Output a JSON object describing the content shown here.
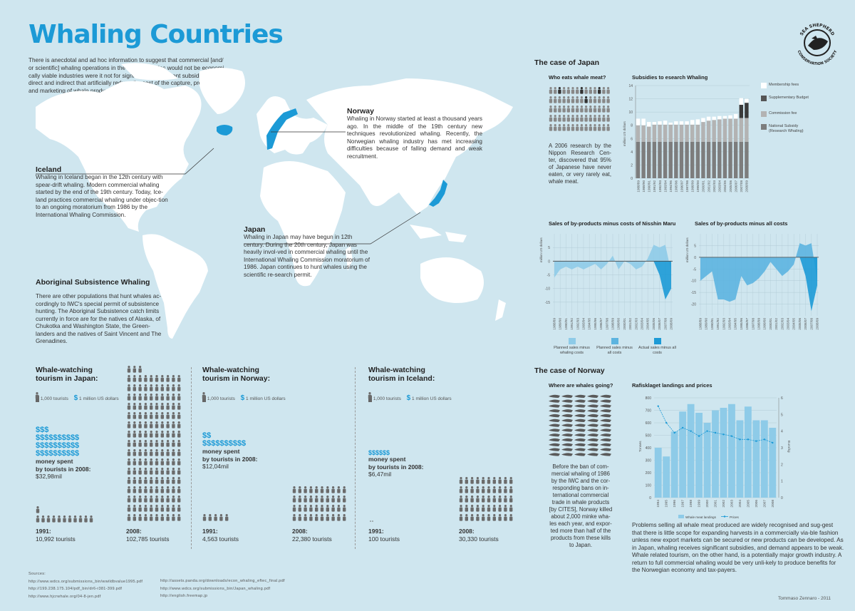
{
  "title": "Whaling Countries",
  "intro": "There is anecdotal and ad hoc information to suggest that commercial [and/ or scientific] whaling operations in the three countries would not be economi-cally viable industries were it not for significant government subsidies, both direct and indirect that artificially reduce the cost of the capture, processing and marketing of whale products.",
  "logo": {
    "top_text": "SEA SHEPHERD",
    "bottom_text": "CONSERVATION SOCIETY"
  },
  "norway": {
    "heading": "Norway",
    "text": "Whaling in Norway started at least a thousand years ago. In the middle of the 19th century new techniques revolutionized whaling. Recently, the Norwegian whaling industry has met increasing difficulties because of falling demand and weak recruitment."
  },
  "iceland": {
    "heading": "Iceland",
    "text": "Whaling in Iceland began in the 12th century with spear-drift whaling. Modern commercial whaling started by the end of the 19th century. Today, Ice-land practices commercial whaling under objec-tion to an ongoing moratorium from 1986 by the International Whaling Commission."
  },
  "japan": {
    "heading": "Japan",
    "text": "Whaling in Japan may have begun in 12th century. During the 20th century, Japan was heavily invol-ved in commercial whaling until the International Whaling Commission moratorium of 1986. Japan continues to hunt whales using the scientific re-search permit."
  },
  "aboriginal": {
    "heading": "Aboriginal Subsistence Whaling",
    "text": "There are other populations that hunt whales ac-cordingly to IWC's special permit of subsistence hunting. The Aboriginal Subsistence catch limits currently in force are for the natives of Alaska, of Chukotka and Washington State, the Green-landers and the natives of Saint Vincent and The Grenadines."
  },
  "tourism": {
    "legend_tourists": "1,000 tourists",
    "legend_dollars": "1 million US dollars",
    "money_label_1": "money spent",
    "money_label_2": "by tourists in 2008:",
    "japan": {
      "heading_1": "Whale-watching",
      "heading_2": "tourism in Japan:",
      "dollars_lines": [
        "$$$",
        "$$$$$$$$$$",
        "$$$$$$$$$$",
        "$$$$$$$$$$"
      ],
      "money": "$32,98mil",
      "y1991": "1991:",
      "t1991": "10,992 tourists",
      "y2008": "2008:",
      "t2008": "102,785 tourists"
    },
    "norway": {
      "heading_1": "Whale-watching",
      "heading_2": "tourism in Norway:",
      "dollars_lines": [
        "$$",
        "$$$$$$$$$$"
      ],
      "money": "$12,04mil",
      "y1991": "1991:",
      "t1991": "4,563 tourists",
      "y2008": "2008:",
      "t2008": "22,380 tourists"
    },
    "iceland": {
      "heading_1": "Whale-watching",
      "heading_2": "tourism in Iceland:",
      "dollars_lines": [
        "$$$$$$"
      ],
      "money": "$6,47mil",
      "y1991": "1991:",
      "t1991": "100 tourists",
      "y2008": "2008:",
      "t2008": "30,330 tourists"
    }
  },
  "case_japan": {
    "heading": "The case of Japan",
    "eats_heading": "Who eats whale meat?",
    "eats_text": "A 2006 research by the Nippon Research Cen-ter, discovered that 95% of Japanese have never eaten, or very rarely eat, whale meat.",
    "subsidies_heading": "Subsidies to esearch Whaling",
    "subsidies_ylabel": "million US dollars",
    "subsidies_legend": [
      "Membership fees",
      "Supplementary Budget",
      "Commission fee",
      "National Subsidy (Research Whaling)"
    ],
    "sales1_heading": "Sales of by-products minus costs of Nisshin Maru",
    "sales2_heading": "Sales of by-products minus all costs",
    "sales_ylabel": "million US dollars",
    "sales_legend": [
      "Planned sales minus whaling costs",
      "Planned sales minus all costs",
      "Actual sales minus all costs"
    ]
  },
  "case_norway": {
    "heading": "The case of Norway",
    "where_heading": "Where are whales going?",
    "where_text": "Before the ban of com-mercial whaling of 1986 by the IWC and the cor-responding bans on in-ternational commercial trade in whale products [by CITES], Norway killed about 2,000 minke wha-les each year, and expor-ted more than half of the products from these kills to Japan.",
    "raf_heading": "Rafisklaget landings and prices",
    "raf_ylabel_left": "Tonnes",
    "raf_ylabel_right": "Euro/kg",
    "raf_legend": [
      "Whale meat landings",
      "Prices"
    ],
    "conclusion": "Problems selling all whale meat produced are widely recognised and sug-gest that there is little scope for expanding harvests in a commercially via-ble fashion unless new export markets can be secured or new products can be developed. As in Japan, whaling receives significant subsidies, and demand appears to be weak. Whale related tourism, on the other hand, is a potentially major growth industry. A return to full commercial whaling would be very unli-kely to produce benefits for the Norwegian economy and tax-payers."
  },
  "sources": {
    "label": "Sources:",
    "col1": [
      "http://www.wdcs.org/submissions_bin/wwildbvalue1995.pdf",
      "http://199.238.175.104/pdf_bin/dr6-r381-399.pdf",
      "http://www.hjcrwhale.org/04-8-jen.pdf"
    ],
    "col2": [
      "http://assets.panda.org/downloads/econ_whaling_eftec_final.pdf",
      "http://www.wdcs.org/submissions_bin/Japan_whaling.pdf",
      "http://english.freemap.jp"
    ]
  },
  "credit": "Tommaso Zennaro - 2011",
  "colors": {
    "accent": "#1c9ad6",
    "background": "#cfe6ef",
    "dark": "#555555"
  },
  "chart_data": [
    {
      "type": "bar",
      "title": "Subsidies to esearch Whaling",
      "ylabel": "million US dollars",
      "ylim": [
        0,
        14
      ],
      "categories": [
        "1988/89",
        "1989/90",
        "1990/91",
        "1991/92",
        "1992/93",
        "1993/94",
        "1994/95",
        "1995/96",
        "1996/97",
        "1997/98",
        "1998/99",
        "1999/00",
        "2000/01",
        "2001/02",
        "2002/03",
        "2003/04",
        "2004/05",
        "2005/06",
        "2006/07",
        "2007/08",
        "2008/09"
      ],
      "stacked": true,
      "series": [
        {
          "name": "National Subsidy (Research Whaling)",
          "values": [
            5.5,
            5.5,
            5.5,
            5.5,
            5.5,
            5.5,
            5.5,
            5.5,
            5.5,
            5.5,
            5.5,
            5.5,
            5.5,
            5.5,
            5.5,
            5.5,
            5.5,
            5.5,
            5.5,
            5.5,
            5.5
          ]
        },
        {
          "name": "Commission fee",
          "values": [
            2.5,
            2.5,
            2.3,
            2.6,
            2.6,
            2.6,
            2.6,
            2.6,
            2.6,
            2.6,
            2.6,
            2.6,
            3.0,
            3.2,
            3.3,
            3.4,
            3.5,
            3.5,
            3.5,
            3.6,
            3.6
          ]
        },
        {
          "name": "Supplementary Budget",
          "values": [
            0,
            0,
            0,
            0,
            0,
            0,
            0,
            0,
            0,
            0,
            0,
            0,
            0,
            0,
            0,
            0,
            0,
            0,
            0,
            2.0,
            2.3
          ]
        },
        {
          "name": "Membership fees",
          "values": [
            1.0,
            1.0,
            0.7,
            0.4,
            0.5,
            0.6,
            0.3,
            0.5,
            0.5,
            0.5,
            0.7,
            0.8,
            0.6,
            0.6,
            0.5,
            0.5,
            0.4,
            0.5,
            0.7,
            1.0,
            0.6
          ]
        }
      ]
    },
    {
      "type": "area",
      "title": "Sales of by-products minus costs of Nisshin Maru",
      "ylabel": "million US dollars",
      "ylim": [
        -20,
        10
      ],
      "yticks": [
        5,
        0,
        -5,
        -10,
        -15
      ],
      "categories": [
        "1988/89",
        "1989/90",
        "1990/91",
        "1991/92",
        "1992/93",
        "1993/94",
        "1994/95",
        "1995/96",
        "1996/97",
        "1997/98",
        "1998/99",
        "1999/00",
        "2000/01",
        "2001/02",
        "2002/03",
        "2003/04",
        "2004/05",
        "2005/06",
        "2006/07",
        "2007/08",
        "2008/09"
      ],
      "series": [
        {
          "name": "Planned sales minus whaling costs",
          "values": [
            -6,
            -3,
            -2,
            -3,
            -2,
            -3,
            -2,
            -1,
            -3,
            -1,
            2,
            -3,
            0,
            -1,
            -3,
            -2,
            1,
            6,
            5,
            6,
            -4
          ]
        },
        {
          "name": "Actual sales minus all costs",
          "values": [
            0,
            0,
            0,
            0,
            0,
            0,
            0,
            0,
            0,
            0,
            0,
            0,
            0,
            0,
            0,
            0,
            0,
            0,
            -5,
            -14,
            -10
          ]
        }
      ]
    },
    {
      "type": "area",
      "title": "Sales of by-products minus all costs",
      "ylabel": "million US dollars",
      "ylim": [
        -25,
        10
      ],
      "yticks": [
        5,
        0,
        -5,
        -10,
        -15,
        -20
      ],
      "categories": [
        "1988/89",
        "1989/90",
        "1990/91",
        "1991/92",
        "1992/93",
        "1993/94",
        "1994/95",
        "1995/96",
        "1996/97",
        "1997/98",
        "1998/99",
        "1999/00",
        "2000/01",
        "2001/02",
        "2002/03",
        "2003/04",
        "2004/05",
        "2005/06",
        "2006/07",
        "2007/08",
        "2008/09"
      ],
      "series": [
        {
          "name": "Planned sales minus all costs",
          "values": [
            -10,
            -8,
            -6,
            -18,
            -18,
            -19,
            -18,
            -8,
            -12,
            -11,
            -9,
            -6,
            -2,
            -5,
            -8,
            -6,
            -3,
            6,
            5,
            6,
            -10
          ]
        },
        {
          "name": "Actual sales minus all costs",
          "values": [
            0,
            0,
            0,
            0,
            0,
            0,
            0,
            0,
            0,
            0,
            0,
            0,
            0,
            0,
            0,
            0,
            0,
            0,
            -8,
            -23,
            -12
          ]
        }
      ]
    },
    {
      "type": "bar",
      "title": "Rafisklaget landings and prices",
      "ylabel": "Tonnes",
      "ylim": [
        0,
        800
      ],
      "categories": [
        "1994",
        "1995",
        "1996",
        "1997",
        "1998",
        "1999",
        "2000",
        "2001",
        "2002",
        "2003",
        "2004",
        "2005",
        "2006",
        "2007",
        "2008"
      ],
      "series": [
        {
          "name": "Whale meat landings",
          "values": [
            400,
            330,
            530,
            690,
            750,
            680,
            600,
            700,
            720,
            750,
            620,
            730,
            620,
            620,
            560
          ]
        },
        {
          "name": "Prices",
          "axis": "right",
          "ylim": [
            0,
            6
          ],
          "values": [
            5.5,
            4.5,
            3.9,
            4.2,
            4.0,
            3.7,
            4.0,
            3.9,
            3.8,
            3.7,
            3.5,
            3.5,
            3.4,
            3.5,
            3.3
          ]
        }
      ]
    }
  ]
}
